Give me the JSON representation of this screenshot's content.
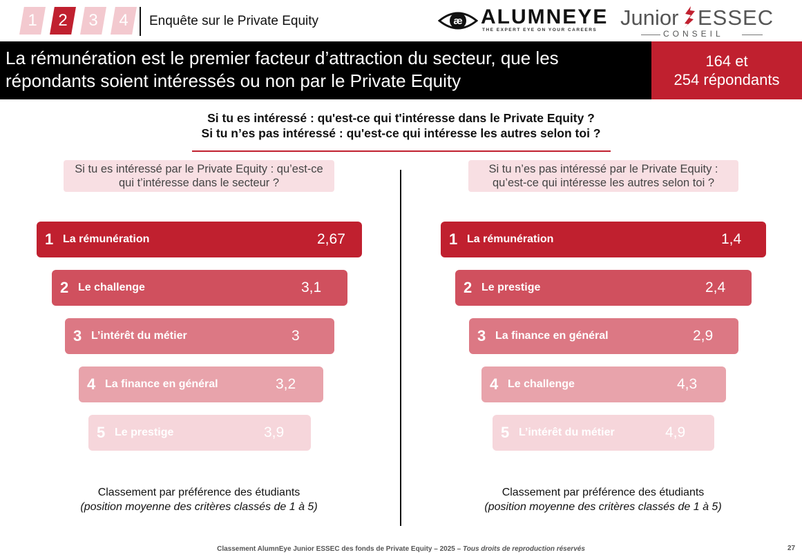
{
  "steps": [
    "1",
    "2",
    "3",
    "4"
  ],
  "active_step": "2",
  "doc_title": "Enquête sur le Private Equity",
  "logos": {
    "alumneye_name": "ALUMNEYE",
    "alumneye_tagline": "THE EXPERT EYE ON YOUR CAREERS",
    "junior_word": "Junior",
    "essec_word": "ESSEC",
    "conseil_word": "CONSEIL"
  },
  "banner": {
    "headline": "La rémunération est le premier facteur d’attraction du secteur, que les répondants soient intéressés ou non par le Private Equity",
    "respondents_line1": "164 et",
    "respondents_line2": "254 répondants"
  },
  "question": {
    "line1": "Si tu es intéressé : qu'est-ce qui t'intéresse dans le Private Equity ?",
    "line2": "Si tu n’es pas intéressé : qu'est-ce qui intéresse les autres selon toi ?"
  },
  "left_panel": {
    "subtitle_line1": "Si tu es intéressé par le Private Equity : qu’est-ce",
    "subtitle_line2": "qui t’intéresse dans le secteur ?",
    "items": [
      {
        "rank": "1",
        "label": "La rémunération",
        "value": "2,67"
      },
      {
        "rank": "2",
        "label": "Le challenge",
        "value": "3,1"
      },
      {
        "rank": "3",
        "label": "L’intérêt du métier",
        "value": "3"
      },
      {
        "rank": "4",
        "label": "La finance en général",
        "value": "3,2"
      },
      {
        "rank": "5",
        "label": "Le prestige",
        "value": "3,9"
      }
    ],
    "caption_line1": "Classement par préférence des étudiants",
    "caption_line2": "(position moyenne des critères classés de 1 à 5)"
  },
  "right_panel": {
    "subtitle_line1": "Si tu n’es pas intéressé par le Private Equity :",
    "subtitle_line2": "qu’est-ce qui intéresse les autres selon toi ?",
    "items": [
      {
        "rank": "1",
        "label": "La rémunération",
        "value": "1,4"
      },
      {
        "rank": "2",
        "label": "Le prestige",
        "value": "2,4"
      },
      {
        "rank": "3",
        "label": "La finance en général",
        "value": "2,9"
      },
      {
        "rank": "4",
        "label": "Le challenge",
        "value": "4,3"
      },
      {
        "rank": "5",
        "label": "L’intérêt du métier",
        "value": "4,9"
      }
    ],
    "caption_line1": "Classement par préférence des étudiants",
    "caption_line2": "(position moyenne des critères classés de 1 à 5)"
  },
  "footer": {
    "text": "Classement AlumnEye Junior ESSEC des fonds de Private Equity – 2025 –",
    "italic": "Tous droits de reproduction réservés",
    "page": "27"
  },
  "colors": {
    "accent": "#c0202f",
    "banner_bg": "#000000",
    "subtitle_bg": "#f8dfe3"
  }
}
